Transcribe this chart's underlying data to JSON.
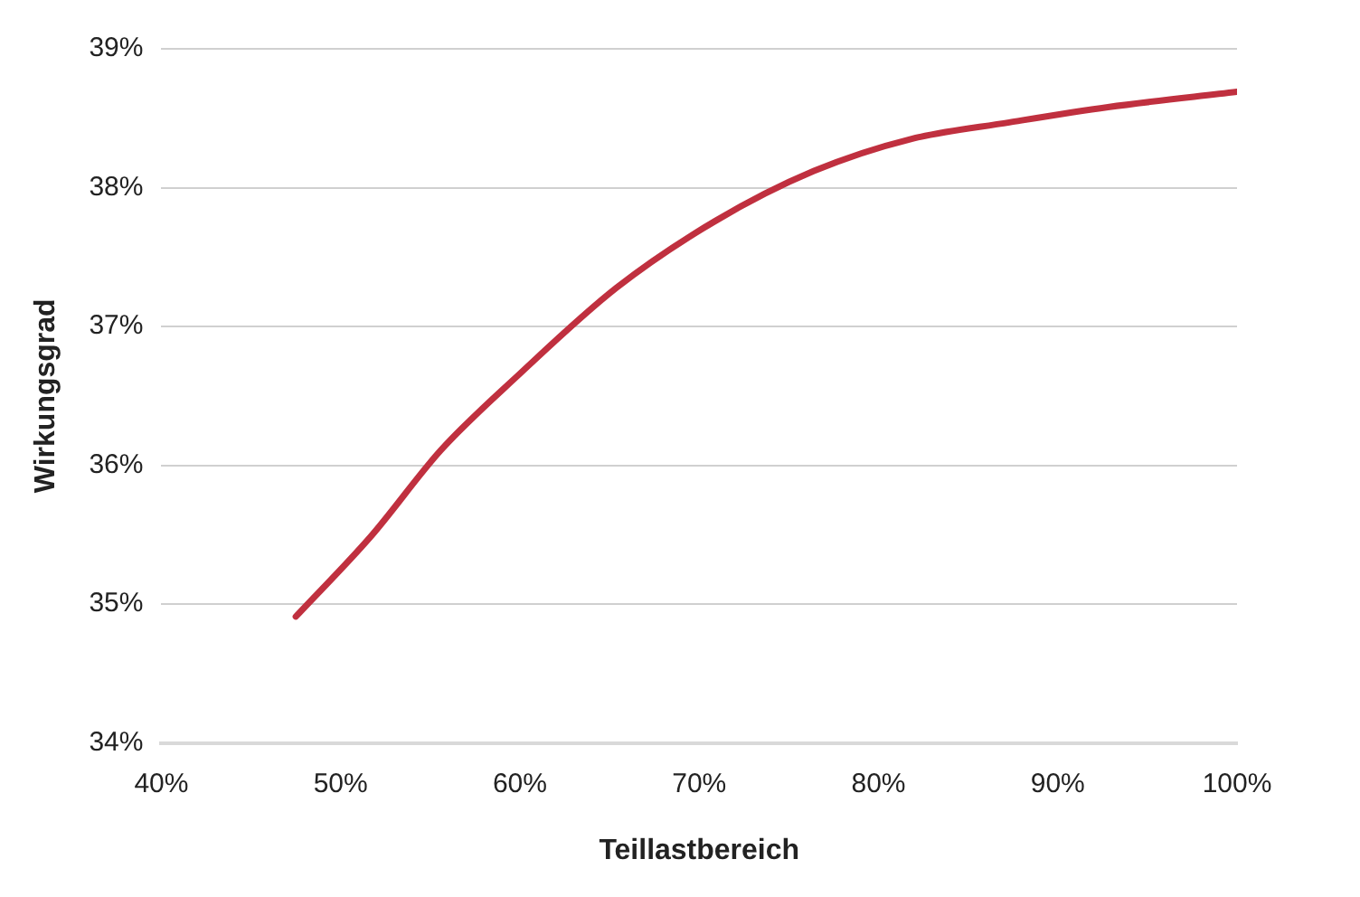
{
  "chart_data": {
    "type": "line",
    "xlabel": "Teillastbereich",
    "ylabel": "Wirkungsgrad",
    "x": [
      47.5,
      51.7,
      55.6,
      60,
      65.4,
      70.9,
      76.4,
      81.8,
      87.3,
      92.8,
      100
    ],
    "series": [
      {
        "color": "#c0303f",
        "values": [
          34.91,
          35.49,
          36.11,
          36.66,
          37.28,
          37.76,
          38.12,
          38.35,
          38.47,
          38.58,
          38.69
        ]
      }
    ],
    "xlim": [
      40,
      100
    ],
    "xticks": [
      {
        "value": 40,
        "label": "40%"
      },
      {
        "value": 50,
        "label": "50%"
      },
      {
        "value": 60,
        "label": "60%"
      },
      {
        "value": 70,
        "label": "70%"
      },
      {
        "value": 80,
        "label": "80%"
      },
      {
        "value": 90,
        "label": "90%"
      },
      {
        "value": 100,
        "label": "100%"
      }
    ],
    "ylim": [
      34,
      39
    ],
    "yticks": [
      {
        "value": 34,
        "label": "34%"
      },
      {
        "value": 35,
        "label": "35%"
      },
      {
        "value": 36,
        "label": "36%"
      },
      {
        "value": 37,
        "label": "37%"
      },
      {
        "value": 38,
        "label": "38%"
      },
      {
        "value": 39,
        "label": "39%"
      }
    ],
    "grid": "y",
    "legend": false,
    "marker": "none",
    "line_style": "solid"
  }
}
